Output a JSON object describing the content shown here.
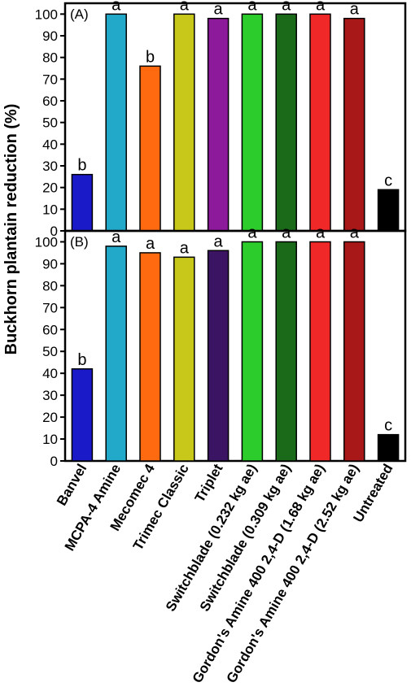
{
  "chart_data": {
    "type": "bar",
    "ylabel": "Buckhorn plantain reduction (%)",
    "ylim": [
      0,
      105
    ],
    "yticks": [
      0,
      10,
      20,
      30,
      40,
      50,
      60,
      70,
      80,
      90,
      100
    ],
    "grid": false,
    "categories": [
      "Banvel",
      "MCPA-4 Amine",
      "Mecomec 4",
      "Trimec Classic",
      "Triplet",
      "Switchblade (0.232 kg ae)",
      "Switchblade (0.309 kg ae)",
      "Gordon's Amine 400 2,4-D (1.68 kg ae)",
      "Gordon's Amine 400 2,4-D (2.52 kg ae)",
      "Untreated"
    ],
    "panels": [
      {
        "panel_label": "(A)",
        "values": [
          26,
          100,
          76,
          100,
          98,
          100,
          100,
          100,
          98,
          19
        ],
        "letters": [
          "b",
          "a",
          "b",
          "a",
          "a",
          "a",
          "a",
          "a",
          "a",
          "c"
        ],
        "colors": [
          "#1a1ac8",
          "#22a8c8",
          "#ff6a10",
          "#c8c81a",
          "#8c1a9a",
          "#2ccc2c",
          "#1a6a1a",
          "#f02828",
          "#a81818",
          "#000000"
        ]
      },
      {
        "panel_label": "(B)",
        "values": [
          42,
          98,
          95,
          93,
          96,
          100,
          100,
          100,
          100,
          12
        ],
        "letters": [
          "b",
          "a",
          "a",
          "a",
          "a",
          "a",
          "a",
          "a",
          "a",
          "c"
        ],
        "colors": [
          "#1a1ac8",
          "#22a8c8",
          "#ff6a10",
          "#c8c81a",
          "#3c1464",
          "#2ccc2c",
          "#1a6a1a",
          "#f02828",
          "#a81818",
          "#000000"
        ]
      }
    ]
  }
}
